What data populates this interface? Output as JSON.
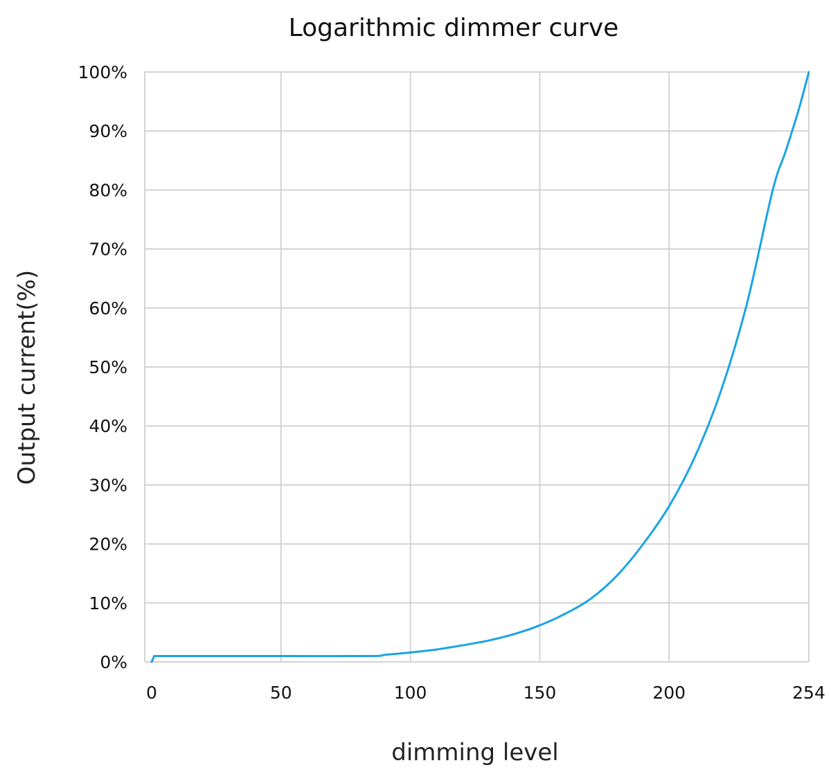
{
  "chart_data": {
    "type": "line",
    "title": "Logarithmic dimmer curve",
    "xlabel": "dimming level",
    "ylabel": "Output current(%)",
    "xlim": [
      0,
      254
    ],
    "ylim": [
      0,
      100
    ],
    "x_ticks": [
      0,
      50,
      100,
      150,
      200,
      254
    ],
    "x_tick_labels": [
      "0",
      "50",
      "100",
      "150",
      "200",
      "254"
    ],
    "y_ticks": [
      0,
      10,
      20,
      30,
      40,
      50,
      60,
      70,
      80,
      90,
      100
    ],
    "y_tick_labels": [
      "0%",
      "10%",
      "20%",
      "30%",
      "40%",
      "50%",
      "60%",
      "70%",
      "80%",
      "90%",
      "100%"
    ],
    "grid": true,
    "legend": "none",
    "series": [
      {
        "color": "#1aa3e6",
        "x": [
          0,
          1,
          5,
          50,
          85,
          90,
          100,
          110,
          120,
          130,
          140,
          150,
          160,
          170,
          180,
          190,
          200,
          210,
          220,
          230,
          240,
          245,
          250,
          254
        ],
        "y": [
          0,
          1,
          1,
          1,
          1,
          1.2,
          1.6,
          2.1,
          2.8,
          3.6,
          4.7,
          6.2,
          8.2,
          10.8,
          14.7,
          20.0,
          26.4,
          34.8,
          45.9,
          60.6,
          79.9,
          86.5,
          93.5,
          100
        ]
      }
    ]
  }
}
